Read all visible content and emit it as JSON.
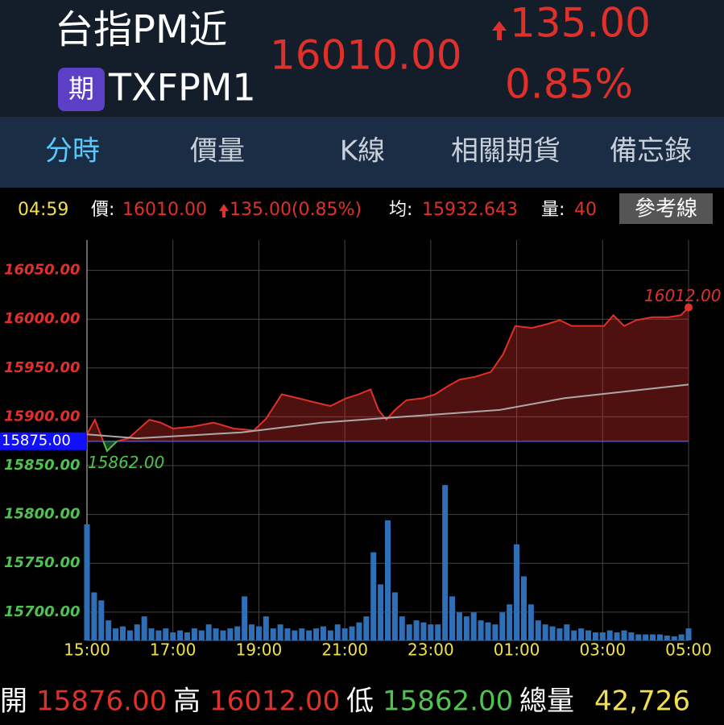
{
  "header": {
    "name": "台指PM近",
    "badge": "期",
    "code": "TXFPM1",
    "price": "16010.00",
    "change": "135.00",
    "change_pct": "0.85%"
  },
  "tabs": [
    "分時",
    "價量",
    "K線",
    "相關期貨",
    "備忘錄"
  ],
  "info": {
    "time": "04:59",
    "price_label": "價:",
    "price": "16010.00",
    "change": "135.00(0.85%)",
    "avg_label": "均:",
    "avg": "15932.643",
    "vol_label": "量:",
    "vol": "40",
    "button": "參考線"
  },
  "chart": {
    "type": "line",
    "up_color": "#e0302a",
    "down_color": "#4fc24f",
    "xlim": [
      0,
      840
    ],
    "xticks": [
      {
        "value": 0,
        "label": "15:00"
      },
      {
        "value": 120,
        "label": "17:00"
      },
      {
        "value": 240,
        "label": "19:00"
      },
      {
        "value": 360,
        "label": "21:00"
      },
      {
        "value": 480,
        "label": "23:00"
      },
      {
        "value": 600,
        "label": "01:00"
      },
      {
        "value": 720,
        "label": "03:00"
      },
      {
        "value": 840,
        "label": "05:00"
      }
    ],
    "ylim": [
      15671,
      16081
    ],
    "yticks": [
      {
        "value": 16050,
        "label": "16050.00"
      },
      {
        "value": 16000,
        "label": "16000.00"
      },
      {
        "value": 15950,
        "label": "15950.00"
      },
      {
        "value": 15900,
        "label": "15900.00"
      },
      {
        "value": 15850,
        "label": "15850.00"
      },
      {
        "value": 15800,
        "label": "15800.00"
      },
      {
        "value": 15750,
        "label": "15750.00"
      },
      {
        "value": 15700,
        "label": "15700.00"
      }
    ],
    "reference": {
      "value": 15875,
      "label": "15875.00"
    },
    "price": {
      "name": "價",
      "color": "#e0302a",
      "x": [
        0,
        11,
        19,
        28,
        42,
        58,
        87,
        103,
        120,
        148,
        177,
        205,
        233,
        250,
        272,
        295,
        317,
        340,
        362,
        379,
        396,
        407,
        418,
        430,
        446,
        469,
        486,
        503,
        520,
        542,
        564,
        581,
        598,
        621,
        643,
        660,
        677,
        699,
        722,
        735,
        750,
        767,
        789,
        812,
        829,
        840
      ],
      "values": [
        15882,
        15897,
        15882,
        15865,
        15875,
        15878,
        15897,
        15894,
        15888,
        15890,
        15894,
        15888,
        15886,
        15898,
        15923,
        15919,
        15915,
        15911,
        15919,
        15923,
        15928,
        15907,
        15897,
        15907,
        15917,
        15919,
        15923,
        15931,
        15938,
        15941,
        15946,
        15964,
        15993,
        15991,
        15995,
        15999,
        15993,
        15993,
        15993,
        16004,
        15993,
        15999,
        16002,
        16002,
        16004,
        16012
      ]
    },
    "average": {
      "name": "均",
      "color": "#aaaaaa",
      "x": [
        0,
        70,
        216,
        328,
        441,
        576,
        666,
        840
      ],
      "values": [
        15882,
        15878,
        15884,
        15894,
        15900,
        15907,
        15919,
        15933
      ]
    },
    "volume": {
      "name": "量",
      "color": "#2f6fb8",
      "lim": [
        0,
        1000
      ],
      "x": [
        0,
        10,
        20,
        30,
        40,
        50,
        60,
        70,
        80,
        90,
        100,
        110,
        120,
        130,
        140,
        150,
        160,
        170,
        180,
        190,
        200,
        210,
        220,
        230,
        240,
        250,
        260,
        270,
        280,
        290,
        300,
        310,
        320,
        330,
        340,
        350,
        360,
        370,
        380,
        390,
        400,
        410,
        420,
        430,
        440,
        450,
        460,
        470,
        480,
        490,
        500,
        510,
        520,
        530,
        540,
        550,
        560,
        570,
        580,
        590,
        600,
        610,
        620,
        630,
        640,
        650,
        660,
        670,
        680,
        690,
        700,
        710,
        720,
        730,
        740,
        750,
        760,
        770,
        780,
        790,
        800,
        810,
        820,
        830,
        840
      ],
      "values": [
        290,
        120,
        100,
        50,
        30,
        35,
        25,
        40,
        60,
        30,
        25,
        30,
        20,
        25,
        20,
        30,
        25,
        40,
        30,
        25,
        30,
        35,
        110,
        40,
        35,
        60,
        30,
        40,
        30,
        25,
        30,
        25,
        30,
        35,
        25,
        40,
        30,
        35,
        45,
        60,
        220,
        140,
        300,
        120,
        60,
        40,
        50,
        45,
        40,
        40,
        388,
        110,
        70,
        60,
        70,
        50,
        45,
        40,
        70,
        90,
        240,
        160,
        90,
        50,
        40,
        35,
        30,
        40,
        25,
        30,
        25,
        20,
        20,
        25,
        20,
        25,
        20,
        15,
        15,
        15,
        15,
        12,
        10,
        15,
        30
      ]
    },
    "annotations": [
      {
        "text": "16012.00",
        "x": 840,
        "y": 16012
      },
      {
        "text": "15862.00",
        "x": 28,
        "y": 15862
      }
    ]
  },
  "summary": {
    "open_label": "開",
    "open": "15876.00",
    "high_label": "高",
    "high": "16012.00",
    "low_label": "低",
    "low": "15862.00",
    "total_label": "總量",
    "total": "42,726"
  }
}
